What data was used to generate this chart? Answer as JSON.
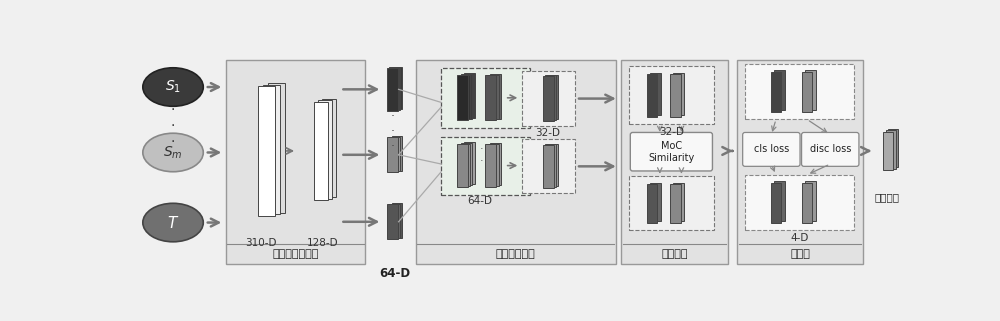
{
  "fig_w": 10.0,
  "fig_h": 3.21,
  "dpi": 100,
  "bg": "#f0f0f0",
  "panel_bg": "#e2e2e2",
  "panel_edge": "#888888",
  "white": "#ffffff",
  "dark_block": "#3a3a3a",
  "mid_block": "#707070",
  "light_block": "#aaaaaa",
  "s1_fill": "#3a3a3a",
  "sm_fill": "#c0c0c0",
  "t_fill": "#707070",
  "arrow_color": "#666666",
  "text_color": "#222222",
  "dashed_box_bg": "#e8f0e8",
  "plain_box_bg": "#f0f0f0",
  "sections": [
    "共享特征提取器",
    "疵特征提取器",
    "样本选择",
    "分类器"
  ],
  "label_310": "310-D",
  "label_128": "128-D",
  "label_64a": "64-D",
  "label_64b": "64-D",
  "label_32a": "32-D",
  "label_32b": "32-D",
  "label_4": "4-D",
  "moc_label": "MoC\nSimilarity",
  "cls_label": "cls loss",
  "disc_label": "disc loss",
  "pred_label": "预测标签"
}
